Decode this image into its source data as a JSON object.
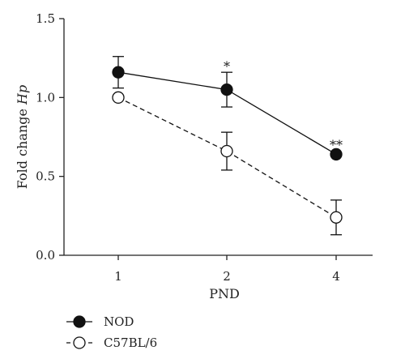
{
  "chart_data": {
    "type": "line",
    "title": "",
    "xlabel": "PND",
    "ylabel_prefix": "Fold change ",
    "ylabel_italic": "Hp",
    "x_categories": [
      "1",
      "2",
      "4"
    ],
    "y_ticks": [
      "0.0",
      "0.5",
      "1.0",
      "1.5"
    ],
    "ylim": [
      0,
      1.5
    ],
    "grid": false,
    "legend_position": "bottom-left",
    "series": [
      {
        "name": "NOD",
        "marker": "filled-circle",
        "line_style": "solid",
        "values": [
          1.16,
          1.05,
          0.64
        ],
        "errors": [
          0.1,
          0.11,
          0.0
        ]
      },
      {
        "name": "C57BL/6",
        "marker": "open-circle",
        "line_style": "dashed",
        "values": [
          1.0,
          0.66,
          0.24
        ],
        "errors": [
          0.0,
          0.12,
          0.11
        ]
      }
    ],
    "annotations": [
      {
        "x_index": 1,
        "text": "*",
        "y": 1.2
      },
      {
        "x_index": 2,
        "text": "**",
        "y": 0.7
      }
    ]
  }
}
